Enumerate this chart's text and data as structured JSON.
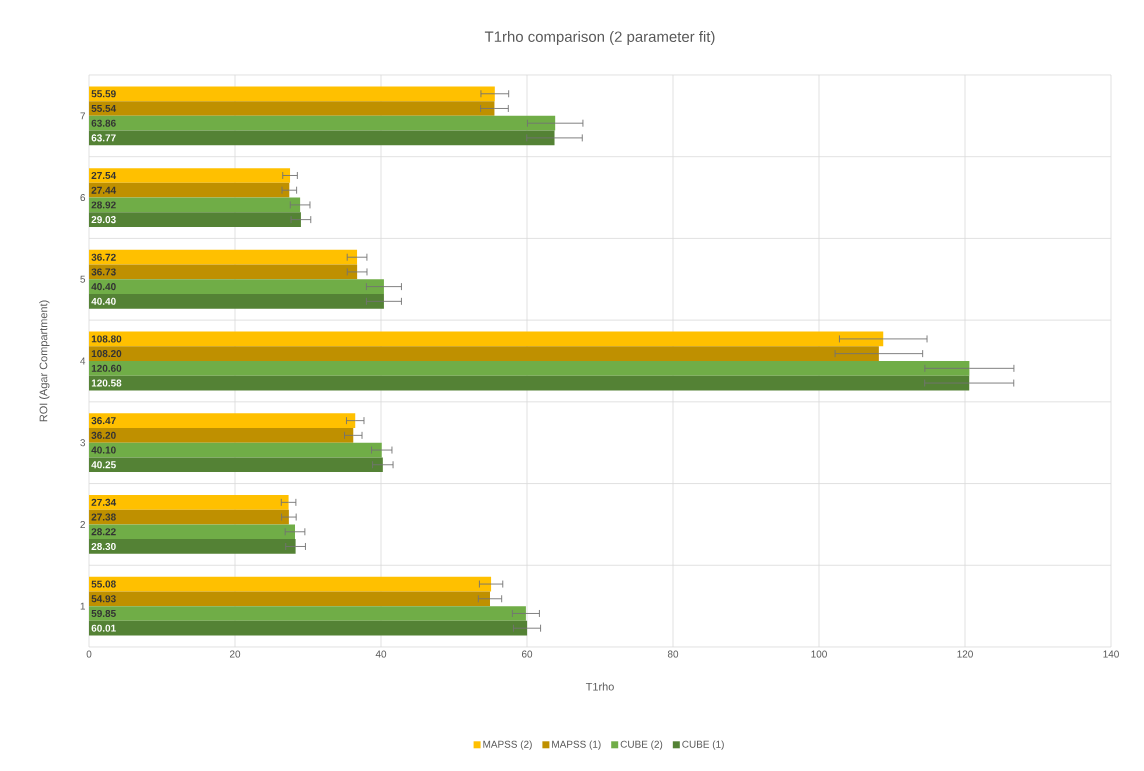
{
  "chart_data": {
    "type": "bar",
    "orientation": "horizontal",
    "title": "T1rho comparison (2 parameter fit)",
    "xlabel": "T1rho",
    "ylabel": "ROI (Agar Compartment)",
    "categories": [
      "7",
      "6",
      "5",
      "4",
      "3",
      "2",
      "1"
    ],
    "series": [
      {
        "name": "MAPSS (2)",
        "color": "#ffc000",
        "values": [
          55.59,
          27.54,
          36.72,
          108.8,
          36.47,
          27.34,
          55.08
        ],
        "value_labels": [
          "55.59",
          "27.54",
          "36.72",
          "108.80",
          "36.47",
          "27.34",
          "55.08"
        ],
        "errors": [
          1.9,
          1.0,
          1.35,
          6.0,
          1.2,
          1.0,
          1.6
        ]
      },
      {
        "name": "MAPSS (1)",
        "color": "#bf9000",
        "values": [
          55.54,
          27.44,
          36.73,
          108.2,
          36.2,
          27.38,
          54.93
        ],
        "value_labels": [
          "55.54",
          "27.44",
          "36.73",
          "108.20",
          "36.20",
          "27.38",
          "54.93"
        ],
        "errors": [
          1.9,
          1.0,
          1.35,
          6.0,
          1.2,
          1.0,
          1.6
        ]
      },
      {
        "name": "CUBE (2)",
        "color": "#70ad47",
        "values": [
          63.86,
          28.92,
          40.4,
          120.6,
          40.1,
          28.22,
          59.85
        ],
        "value_labels": [
          "63.86",
          "28.92",
          "40.40",
          "120.60",
          "40.10",
          "28.22",
          "59.85"
        ],
        "errors": [
          3.8,
          1.35,
          2.4,
          6.1,
          1.4,
          1.35,
          1.85
        ]
      },
      {
        "name": "CUBE (1)",
        "color": "#548235",
        "values": [
          63.77,
          29.03,
          40.4,
          120.58,
          40.25,
          28.3,
          60.01
        ],
        "value_labels": [
          "63.77",
          "29.03",
          "40.40",
          "120.58",
          "40.25",
          "28.30",
          "60.01"
        ],
        "errors": [
          3.8,
          1.35,
          2.4,
          6.1,
          1.4,
          1.35,
          1.85
        ]
      }
    ],
    "xlim": [
      0,
      140
    ],
    "xticks": [
      0,
      20,
      40,
      60,
      80,
      100,
      120,
      140
    ],
    "grid": true,
    "legend": "bottom"
  }
}
